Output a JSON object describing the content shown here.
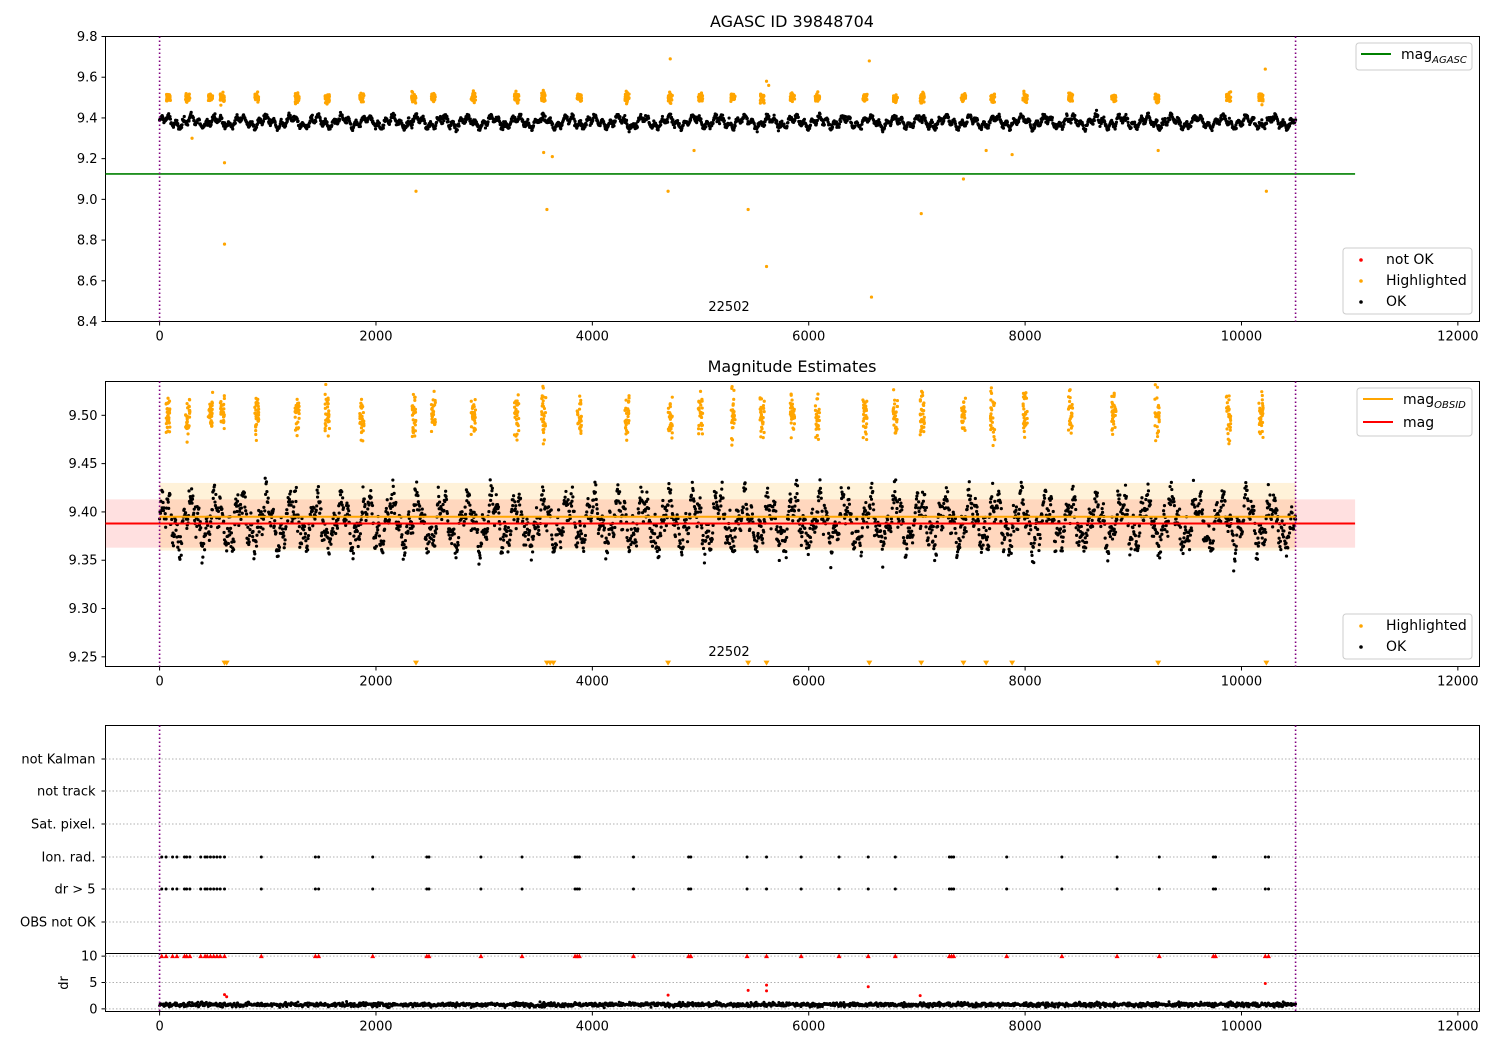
{
  "colors": {
    "ok": "#000000",
    "highlighted": "#ffa500",
    "not_ok": "#ff0000",
    "agasc_line": "#008000",
    "obsid_line": "#ffa500",
    "mag_line": "#ff0000",
    "obs_boundary": "#800080",
    "grid": "#b0b0b0"
  },
  "chart_data": [
    {
      "type": "scatter",
      "title": "AGASC ID 39848704",
      "xlim": [
        -500,
        12200
      ],
      "ylim": [
        8.4,
        9.8
      ],
      "xticks": [
        0,
        2000,
        4000,
        6000,
        8000,
        10000,
        12000
      ],
      "yticks": [
        8.4,
        8.6,
        8.8,
        9.0,
        9.2,
        9.4,
        9.6,
        9.8
      ],
      "ytick_labels": [
        "8.4",
        "8.6",
        "8.8",
        "9.0",
        "9.2",
        "9.4",
        "9.6",
        "9.8"
      ],
      "obs_boundaries": [
        0,
        10500
      ],
      "annotation": "22502",
      "annotation_x": 5250,
      "hlines": [
        {
          "name": "mag",
          "sub": "AGASC",
          "y": 9.125,
          "x0": -500,
          "x1": 11050
        }
      ],
      "series": [
        {
          "name": "not OK",
          "x_range": [
            0,
            10500
          ],
          "baseline": 9.38
        },
        {
          "name": "Highlighted",
          "x_range": [
            0,
            10500
          ],
          "baseline": 9.5,
          "outliers": [
            [
              300,
              9.3
            ],
            [
              600,
              9.18
            ],
            [
              600,
              8.78
            ],
            [
              2370,
              9.04
            ],
            [
              3580,
              8.95
            ],
            [
              3630,
              9.21
            ],
            [
              3550,
              9.23
            ],
            [
              4700,
              9.04
            ],
            [
              4720,
              9.69
            ],
            [
              4940,
              9.24
            ],
            [
              5440,
              8.95
            ],
            [
              5610,
              8.67
            ],
            [
              5610,
              9.58
            ],
            [
              5630,
              9.56
            ],
            [
              6560,
              9.68
            ],
            [
              6580,
              8.52
            ],
            [
              7040,
              8.93
            ],
            [
              7430,
              9.1
            ],
            [
              7640,
              9.24
            ],
            [
              7880,
              9.22
            ],
            [
              9230,
              9.24
            ],
            [
              10230,
              9.04
            ],
            [
              10220,
              9.64
            ]
          ]
        },
        {
          "name": "OK",
          "x_range": [
            0,
            10500
          ],
          "baseline": 9.38
        }
      ],
      "legend": [
        "not OK",
        "Highlighted",
        "OK"
      ]
    },
    {
      "type": "scatter",
      "title": "Magnitude Estimates",
      "xlim": [
        -500,
        12200
      ],
      "ylim": [
        9.24,
        9.535
      ],
      "xticks": [
        0,
        2000,
        4000,
        6000,
        8000,
        10000,
        12000
      ],
      "yticks": [
        9.25,
        9.3,
        9.35,
        9.4,
        9.45,
        9.5
      ],
      "ytick_labels": [
        "9.25",
        "9.30",
        "9.35",
        "9.40",
        "9.45",
        "9.50"
      ],
      "obs_boundaries": [
        0,
        10500
      ],
      "annotation": "22502",
      "annotation_x": 5250,
      "hlines": [
        {
          "name": "mag",
          "sub": "OBSID",
          "y": 9.395,
          "x0": 0,
          "x1": 10500,
          "band": [
            9.36,
            9.43
          ]
        },
        {
          "name": "mag",
          "sub": "",
          "y": 9.388,
          "x0": -500,
          "x1": 11050,
          "band": [
            9.363,
            9.413
          ]
        }
      ],
      "lower_markers_x": [
        600,
        620,
        2370,
        3580,
        3610,
        3640,
        4700,
        5440,
        5610,
        6560,
        7040,
        7430,
        7640,
        7880,
        9230,
        10230
      ],
      "series": [
        {
          "name": "Highlighted",
          "baseline": 9.5
        },
        {
          "name": "OK",
          "baseline": 9.39
        }
      ],
      "legend": [
        "Highlighted",
        "OK"
      ]
    },
    {
      "type": "scatter",
      "title": "",
      "xlim": [
        -500,
        12200
      ],
      "categories": [
        "not Kalman",
        "not track",
        "Sat. pixel.",
        "Ion. rad.",
        "dr > 5",
        "OBS not OK"
      ],
      "flag_rows": {
        "Ion. rad.": [
          20,
          60,
          120,
          160,
          230,
          250,
          280,
          380,
          420,
          440,
          470,
          500,
          530,
          560,
          600,
          940,
          1440,
          1470,
          1970,
          2470,
          2490,
          2970,
          3350,
          3840,
          3860,
          3880,
          4380,
          4890,
          4910,
          5430,
          5610,
          5930,
          6280,
          6550,
          6800,
          7300,
          7320,
          7340,
          7830,
          8340,
          8850,
          9240,
          9740,
          9760,
          10220,
          10250
        ],
        "dr > 5": [
          20,
          60,
          120,
          160,
          230,
          250,
          280,
          380,
          420,
          440,
          470,
          500,
          530,
          560,
          600,
          940,
          1440,
          1470,
          1970,
          2470,
          2490,
          2970,
          3350,
          3840,
          3860,
          3880,
          4380,
          4890,
          4910,
          5430,
          5610,
          5930,
          6280,
          6550,
          6800,
          7300,
          7320,
          7340,
          7830,
          8340,
          8850,
          9240,
          9740,
          9760,
          10220,
          10250
        ]
      },
      "obs_boundaries": [
        0,
        10500
      ]
    },
    {
      "type": "scatter",
      "title": "",
      "xlim": [
        -500,
        12200
      ],
      "ylim": [
        -0.5,
        10.5
      ],
      "ylabel": "dr",
      "xticks": [
        0,
        2000,
        4000,
        6000,
        8000,
        10000,
        12000
      ],
      "yticks": [
        0,
        5,
        10
      ],
      "ytick_labels": [
        "0",
        "5",
        "10"
      ],
      "obs_boundaries": [
        0,
        10500
      ],
      "clipped_x": [
        20,
        60,
        120,
        160,
        230,
        250,
        280,
        380,
        420,
        440,
        470,
        500,
        530,
        560,
        600,
        940,
        1440,
        1470,
        1970,
        2470,
        2490,
        2970,
        3350,
        3840,
        3860,
        3880,
        4380,
        4890,
        4910,
        5430,
        5610,
        5930,
        6280,
        6550,
        6800,
        7300,
        7320,
        7340,
        7830,
        8340,
        8850,
        9240,
        9740,
        9760,
        10220,
        10250
      ],
      "outliers": [
        [
          600,
          2.7
        ],
        [
          620,
          2.3
        ],
        [
          4700,
          2.6
        ],
        [
          5440,
          3.5
        ],
        [
          5610,
          4.5
        ],
        [
          5610,
          3.4
        ],
        [
          6550,
          4.2
        ],
        [
          7030,
          2.5
        ],
        [
          10220,
          4.8
        ]
      ],
      "series": [
        {
          "name": "dr",
          "baseline": 0.8
        }
      ]
    }
  ]
}
